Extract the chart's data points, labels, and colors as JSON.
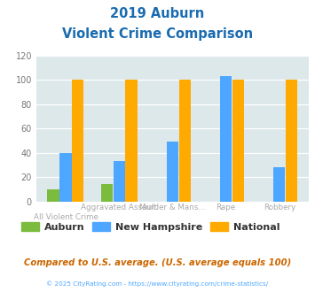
{
  "title_line1": "2019 Auburn",
  "title_line2": "Violent Crime Comparison",
  "categories": [
    "All Violent Crime",
    "Aggravated Assault",
    "Murder & Mans...",
    "Rape",
    "Robbery"
  ],
  "xtick_top": [
    "",
    "Aggravated Assault",
    "Murder & Mans...",
    "Rape",
    "Robbery"
  ],
  "xtick_bot": [
    "All Violent Crime",
    "",
    "",
    "",
    ""
  ],
  "auburn": [
    10,
    14,
    0,
    0,
    0
  ],
  "new_hampshire": [
    40,
    33,
    49,
    103,
    28
  ],
  "national": [
    100,
    100,
    100,
    100,
    100
  ],
  "auburn_color": "#7bbb3e",
  "nh_color": "#4da6ff",
  "national_color": "#ffaa00",
  "ylim": [
    0,
    120
  ],
  "yticks": [
    0,
    20,
    40,
    60,
    80,
    100,
    120
  ],
  "bg_color": "#dce8ea",
  "title_color": "#1a6bb0",
  "footer_text": "Compared to U.S. average. (U.S. average equals 100)",
  "copyright_text": "© 2025 CityRating.com - https://www.cityrating.com/crime-statistics/",
  "legend_labels": [
    "Auburn",
    "New Hampshire",
    "National"
  ],
  "footer_color": "#cc6600",
  "copyright_color": "#4da6ff"
}
